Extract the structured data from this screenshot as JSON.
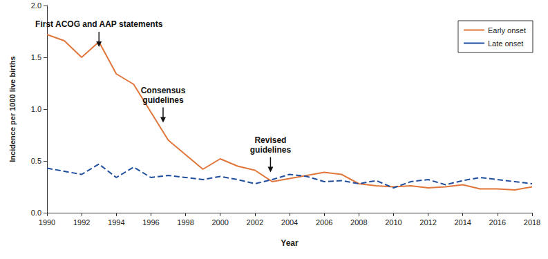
{
  "chart_data": {
    "type": "line",
    "x_label": "Year",
    "y_label": "Incidence per 1000 live births",
    "x": [
      1990,
      1991,
      1992,
      1993,
      1994,
      1995,
      1996,
      1997,
      1998,
      1999,
      2000,
      2001,
      2002,
      2003,
      2004,
      2005,
      2006,
      2007,
      2008,
      2009,
      2010,
      2011,
      2012,
      2013,
      2014,
      2015,
      2016,
      2017,
      2018
    ],
    "series": [
      {
        "name": "Early onset",
        "color": "#e0763a",
        "line_style": "solid",
        "marker": "none",
        "values": [
          1.72,
          1.66,
          1.5,
          1.65,
          1.34,
          1.24,
          0.97,
          0.7,
          0.56,
          0.42,
          0.52,
          0.45,
          0.41,
          0.3,
          0.33,
          0.36,
          0.39,
          0.37,
          0.28,
          0.26,
          0.25,
          0.26,
          0.24,
          0.25,
          0.27,
          0.23,
          0.23,
          0.22,
          0.25
        ]
      },
      {
        "name": "Late onset",
        "color": "#1f4e9c",
        "line_style": "dashed",
        "marker": "none",
        "values": [
          0.43,
          0.4,
          0.37,
          0.47,
          0.34,
          0.44,
          0.34,
          0.36,
          0.34,
          0.32,
          0.35,
          0.32,
          0.28,
          0.32,
          0.37,
          0.35,
          0.3,
          0.31,
          0.28,
          0.31,
          0.24,
          0.3,
          0.32,
          0.27,
          0.31,
          0.34,
          0.32,
          0.3,
          0.28
        ]
      }
    ],
    "xlim": [
      1990,
      2018
    ],
    "xticks": [
      1990,
      1992,
      1994,
      1996,
      1998,
      2000,
      2002,
      2004,
      2006,
      2008,
      2010,
      2012,
      2014,
      2016,
      2018
    ],
    "ylim": [
      0,
      2
    ],
    "yticks": [
      {
        "value": 0,
        "label": "0.0"
      },
      0.5,
      {
        "value": 1,
        "label": "1.0"
      },
      1.5,
      {
        "value": 2,
        "label": "2.0"
      }
    ],
    "grid": false,
    "legend": "top-right",
    "annotations": [
      {
        "text": "First ACOG and AAP statements",
        "x": 1993,
        "y": 1.6
      },
      {
        "text": "Consensus guidelines",
        "x": 1996.7,
        "y": 0.87
      },
      {
        "text": "Revised guidelines",
        "x": 2002.9,
        "y": 0.39
      }
    ]
  }
}
